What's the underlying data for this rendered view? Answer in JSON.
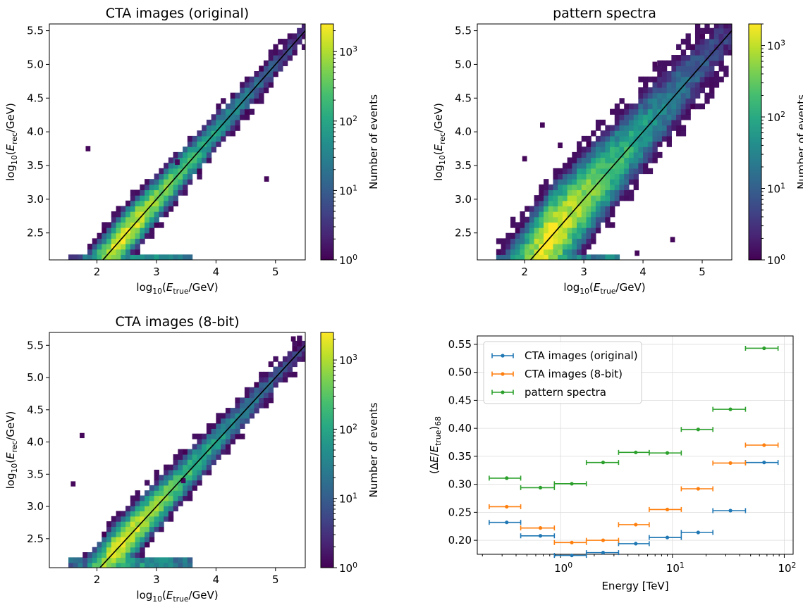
{
  "chart_data": [
    {
      "type": "heatmap",
      "panel": "top-left",
      "title": "CTA images (original)",
      "xlabel": "log10(Etrue/GeV)",
      "ylabel": "log10(Erec/GeV)",
      "xlim": [
        1.2,
        5.5
      ],
      "ylim": [
        2.1,
        5.6
      ],
      "xticks": [
        2,
        3,
        4,
        5
      ],
      "yticks": [
        2.5,
        3.0,
        3.5,
        4.0,
        4.5,
        5.0,
        5.5
      ],
      "ytick_labels": [
        "2.5",
        "3.0",
        "3.5",
        "4.0",
        "4.5",
        "5.0",
        "5.5"
      ],
      "colorbar": {
        "label": "Number of events",
        "scale": "log",
        "min": 1,
        "max": 2500,
        "ticks": [
          "10^0",
          "10^1",
          "10^2",
          "10^3"
        ]
      },
      "diagonal": true,
      "spread": {
        "low_e": 0.2,
        "high_e": 0.12
      },
      "outliers": [
        [
          1.85,
          3.75
        ],
        [
          4.85,
          3.3
        ],
        [
          3.35,
          3.55
        ]
      ]
    },
    {
      "type": "heatmap",
      "panel": "top-right",
      "title": "pattern spectra",
      "xlabel": "log10(Etrue/GeV)",
      "ylabel": "log10(Erec/GeV)",
      "xlim": [
        1.2,
        5.5
      ],
      "ylim": [
        2.1,
        5.6
      ],
      "xticks": [
        2,
        3,
        4,
        5
      ],
      "yticks": [
        2.5,
        3.0,
        3.5,
        4.0,
        4.5,
        5.0,
        5.5
      ],
      "ytick_labels": [
        "2.5",
        "3.0",
        "3.5",
        "4.0",
        "4.5",
        "5.0",
        "5.5"
      ],
      "colorbar": {
        "label": "Number of events",
        "scale": "log",
        "min": 1,
        "max": 2000,
        "ticks": [
          "10^0",
          "10^1",
          "10^2",
          "10^3"
        ]
      },
      "diagonal": true,
      "spread": {
        "low_e": 0.35,
        "high_e": 0.3
      },
      "outliers": [
        [
          2.3,
          4.1
        ],
        [
          2.6,
          3.8
        ],
        [
          4.2,
          5.0
        ],
        [
          4.5,
          2.4
        ],
        [
          3.9,
          2.2
        ],
        [
          2.0,
          3.6
        ]
      ]
    },
    {
      "type": "heatmap",
      "panel": "bottom-left",
      "title": "CTA images (8-bit)",
      "xlabel": "log10(Etrue/GeV)",
      "ylabel": "log10(Erec/GeV)",
      "xlim": [
        1.2,
        5.5
      ],
      "ylim": [
        2.05,
        5.7
      ],
      "xticks": [
        2,
        3,
        4,
        5
      ],
      "yticks": [
        2.5,
        3.0,
        3.5,
        4.0,
        4.5,
        5.0,
        5.5
      ],
      "ytick_labels": [
        "2.5",
        "3.0",
        "3.5",
        "4.0",
        "4.5",
        "5.0",
        "5.5"
      ],
      "colorbar": {
        "label": "Number of events",
        "scale": "log",
        "min": 1,
        "max": 2500,
        "ticks": [
          "10^0",
          "10^1",
          "10^2",
          "10^3"
        ]
      },
      "diagonal": true,
      "spread": {
        "low_e": 0.22,
        "high_e": 0.13
      },
      "outliers": [
        [
          1.75,
          4.1
        ],
        [
          1.6,
          3.35
        ],
        [
          3.45,
          3.4
        ],
        [
          5.3,
          5.6
        ]
      ]
    },
    {
      "type": "scatter",
      "panel": "bottom-right",
      "title": "",
      "xlabel": "Energy [TeV]",
      "ylabel": "(ΔE/Etrue)68",
      "xscale": "log",
      "xlim": [
        0.18,
        120
      ],
      "ylim": [
        0.175,
        0.565
      ],
      "xticks": [
        1,
        10,
        100
      ],
      "xtick_labels": [
        "10^0",
        "10^1",
        "10^2"
      ],
      "yticks": [
        0.2,
        0.25,
        0.3,
        0.35,
        0.4,
        0.45,
        0.5,
        0.55
      ],
      "ytick_labels": [
        "0.20",
        "0.25",
        "0.30",
        "0.35",
        "0.40",
        "0.45",
        "0.50",
        "0.55"
      ],
      "grid": true,
      "legend": "top-left",
      "series": [
        {
          "name": "CTA images (original)",
          "color": "#1f77b4",
          "points": [
            {
              "x": 0.33,
              "xlo": 0.23,
              "xhi": 0.44,
              "y": 0.232
            },
            {
              "x": 0.66,
              "xlo": 0.44,
              "xhi": 0.88,
              "y": 0.208
            },
            {
              "x": 1.26,
              "xlo": 0.88,
              "xhi": 1.7,
              "y": 0.173
            },
            {
              "x": 2.4,
              "xlo": 1.7,
              "xhi": 3.3,
              "y": 0.178
            },
            {
              "x": 4.7,
              "xlo": 3.3,
              "xhi": 6.2,
              "y": 0.194
            },
            {
              "x": 9.0,
              "xlo": 6.2,
              "xhi": 12.0,
              "y": 0.205
            },
            {
              "x": 17.0,
              "xlo": 12.0,
              "xhi": 23.0,
              "y": 0.214
            },
            {
              "x": 33.0,
              "xlo": 23.0,
              "xhi": 45.0,
              "y": 0.253
            },
            {
              "x": 66.0,
              "xlo": 45.0,
              "xhi": 88.0,
              "y": 0.339
            }
          ]
        },
        {
          "name": "CTA images (8-bit)",
          "color": "#ff7f0e",
          "points": [
            {
              "x": 0.33,
              "xlo": 0.23,
              "xhi": 0.44,
              "y": 0.26
            },
            {
              "x": 0.66,
              "xlo": 0.44,
              "xhi": 0.88,
              "y": 0.222
            },
            {
              "x": 1.26,
              "xlo": 0.88,
              "xhi": 1.7,
              "y": 0.196
            },
            {
              "x": 2.4,
              "xlo": 1.7,
              "xhi": 3.3,
              "y": 0.2
            },
            {
              "x": 4.7,
              "xlo": 3.3,
              "xhi": 6.2,
              "y": 0.228
            },
            {
              "x": 9.0,
              "xlo": 6.2,
              "xhi": 12.0,
              "y": 0.255
            },
            {
              "x": 17.0,
              "xlo": 12.0,
              "xhi": 23.0,
              "y": 0.292
            },
            {
              "x": 33.0,
              "xlo": 23.0,
              "xhi": 45.0,
              "y": 0.338
            },
            {
              "x": 66.0,
              "xlo": 45.0,
              "xhi": 88.0,
              "y": 0.37
            }
          ]
        },
        {
          "name": "pattern spectra",
          "color": "#2ca02c",
          "points": [
            {
              "x": 0.33,
              "xlo": 0.23,
              "xhi": 0.44,
              "y": 0.311
            },
            {
              "x": 0.66,
              "xlo": 0.44,
              "xhi": 0.88,
              "y": 0.294
            },
            {
              "x": 1.26,
              "xlo": 0.88,
              "xhi": 1.7,
              "y": 0.301
            },
            {
              "x": 2.4,
              "xlo": 1.7,
              "xhi": 3.3,
              "y": 0.339
            },
            {
              "x": 4.7,
              "xlo": 3.3,
              "xhi": 6.2,
              "y": 0.357
            },
            {
              "x": 9.0,
              "xlo": 6.2,
              "xhi": 12.0,
              "y": 0.356
            },
            {
              "x": 17.0,
              "xlo": 12.0,
              "xhi": 23.0,
              "y": 0.398
            },
            {
              "x": 33.0,
              "xlo": 23.0,
              "xhi": 45.0,
              "y": 0.434
            },
            {
              "x": 66.0,
              "xlo": 45.0,
              "xhi": 88.0,
              "y": 0.543
            }
          ]
        }
      ]
    }
  ]
}
